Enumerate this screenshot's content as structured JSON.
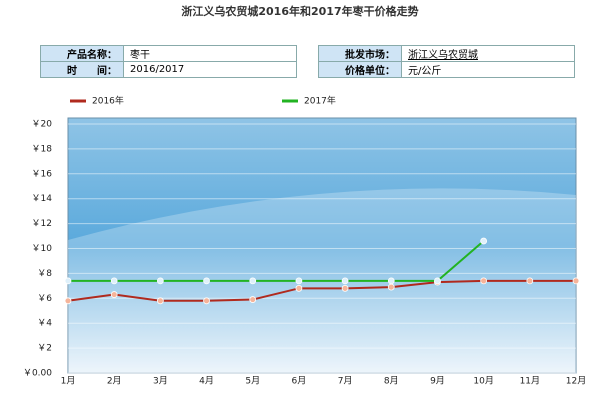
{
  "info": {
    "rows": [
      [
        {
          "label": "产品名称：",
          "value": "枣干"
        },
        {
          "label": "批发市场：",
          "value": "浙江义乌农贸城"
        }
      ],
      [
        {
          "label": "时　　间：",
          "value": "2016/2017"
        },
        {
          "label": "价格单位：",
          "value": "元/公斤"
        }
      ]
    ]
  },
  "chart_data": {
    "type": "line",
    "title": "浙江义乌农贸城2016年和2017年枣干价格走势",
    "categories": [
      "1月",
      "2月",
      "3月",
      "4月",
      "5月",
      "6月",
      "7月",
      "8月",
      "9月",
      "10月",
      "11月",
      "12月"
    ],
    "series": [
      {
        "name": "2016年",
        "color": "#b02a1e",
        "values": [
          5.8,
          6.3,
          5.8,
          5.8,
          5.9,
          6.8,
          6.8,
          6.9,
          7.3,
          7.4,
          7.4,
          7.4
        ]
      },
      {
        "name": "2017年",
        "color": "#22b322",
        "values": [
          7.4,
          7.4,
          7.4,
          7.4,
          7.4,
          7.4,
          7.4,
          7.4,
          7.4,
          10.6,
          null,
          null
        ]
      }
    ],
    "ylim": [
      0,
      20
    ],
    "yticks": [
      {
        "value": 0,
        "label": "￥0.00"
      },
      {
        "value": 2,
        "label": "￥2"
      },
      {
        "value": 4,
        "label": "￥4"
      },
      {
        "value": 6,
        "label": "￥6"
      },
      {
        "value": 8,
        "label": "￥8"
      },
      {
        "value": 10,
        "label": "￥10"
      },
      {
        "value": 12,
        "label": "￥12"
      },
      {
        "value": 14,
        "label": "￥14"
      },
      {
        "value": 16,
        "label": "￥16"
      },
      {
        "value": 18,
        "label": "￥18"
      },
      {
        "value": 20,
        "label": "￥20"
      }
    ],
    "grid": true,
    "legend": "top"
  }
}
